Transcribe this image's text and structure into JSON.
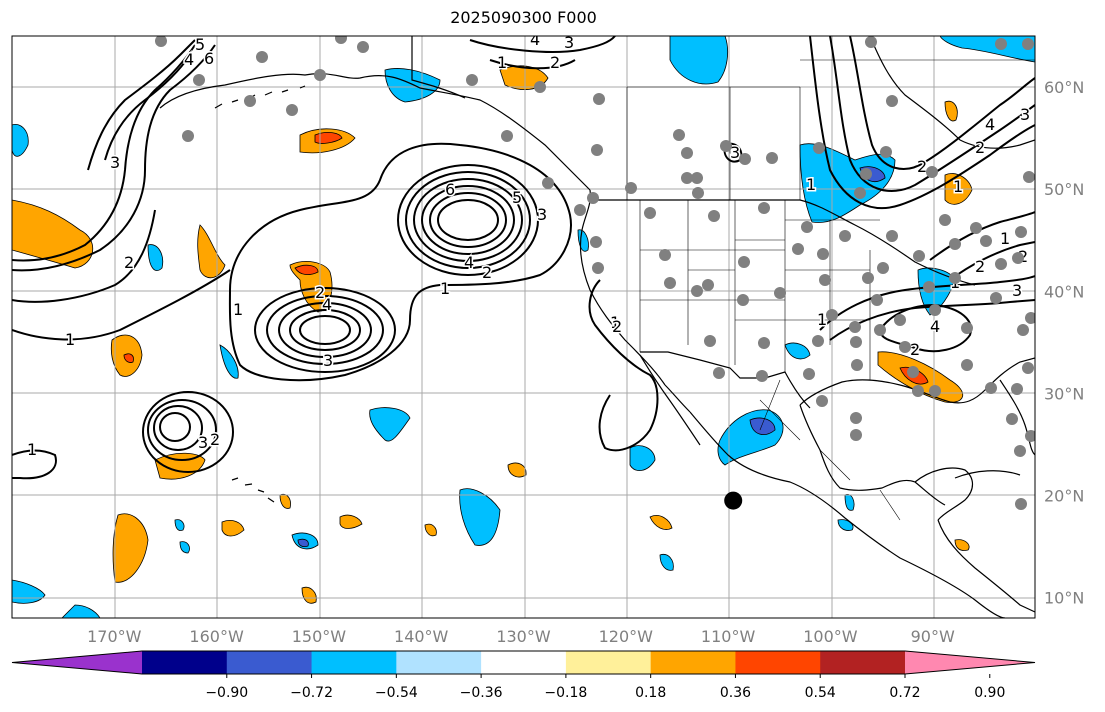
{
  "title": "2025090300 F000",
  "map": {
    "projection": "cylindrical",
    "lon_range": [
      -180,
      -80
    ],
    "lat_range": [
      8,
      65
    ],
    "longitude_labels": [
      "170°W",
      "160°W",
      "150°W",
      "140°W",
      "130°W",
      "120°W",
      "110°W",
      "100°W",
      "90°W"
    ],
    "longitude_values": [
      -170,
      -160,
      -150,
      -140,
      -130,
      -120,
      -110,
      -100,
      -90
    ],
    "latitude_labels": [
      "60°N",
      "50°N",
      "40°N",
      "30°N",
      "20°N",
      "10°N"
    ],
    "latitude_values": [
      60,
      50,
      40,
      30,
      20,
      10
    ],
    "contour_labels": [
      "1",
      "2",
      "3",
      "4",
      "5",
      "6",
      "1",
      "2",
      "3",
      "4",
      "5",
      "6",
      "1",
      "2",
      "3",
      "4",
      "1",
      "2",
      "3",
      "1",
      "2",
      "4",
      "3",
      "1",
      "2",
      "3",
      "2",
      "1",
      "2",
      "1",
      "1",
      "2",
      "1",
      "2",
      "3",
      "4",
      "1",
      "2",
      "3",
      "4"
    ],
    "storm_marker": {
      "lon": -109.5,
      "lat": 19.5
    }
  },
  "colorbar": {
    "colors": [
      "#9a32cd",
      "#00008b",
      "#3a5bd0",
      "#00bfff",
      "#b0e2ff",
      "#ffffff",
      "#fff09a",
      "#ffa500",
      "#ff4500",
      "#b22222",
      "#ff88b0"
    ],
    "tick_labels": [
      "−0.90",
      "−0.72",
      "−0.54",
      "−0.36",
      "−0.18",
      "0.18",
      "0.36",
      "0.54",
      "0.72",
      "0.90"
    ],
    "tick_values": [
      -0.9,
      -0.72,
      -0.54,
      -0.36,
      -0.18,
      0.18,
      0.36,
      0.54,
      0.72,
      0.9
    ]
  }
}
